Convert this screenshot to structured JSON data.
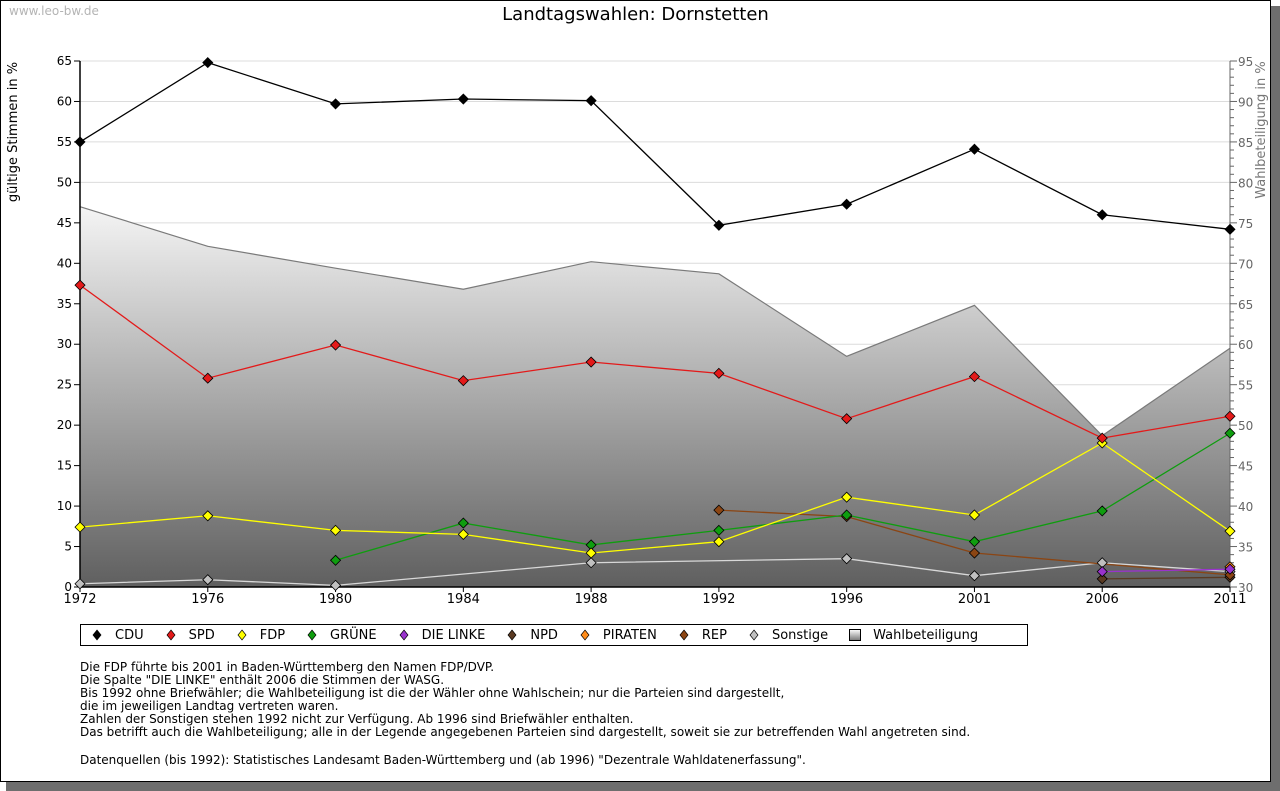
{
  "watermark": "www.leo-bw.de",
  "chart_data": {
    "type": "line",
    "title": "Landtagswahlen: Dornstetten",
    "ylabel": "gültige Stimmen in %",
    "y2label": "Wahlbeteiligung in %",
    "ylim": [
      0,
      65
    ],
    "y2lim": [
      30,
      95
    ],
    "yticks": [
      0,
      5,
      10,
      15,
      20,
      25,
      30,
      35,
      40,
      45,
      50,
      55,
      60,
      65
    ],
    "y2ticks": [
      30,
      35,
      40,
      45,
      50,
      55,
      60,
      65,
      70,
      75,
      80,
      85,
      90,
      95
    ],
    "grid": true,
    "categories": [
      "1972",
      "1976",
      "1980",
      "1984",
      "1988",
      "1992",
      "1996",
      "2001",
      "2006",
      "2011"
    ],
    "series": [
      {
        "name": "Wahlbeteiligung",
        "type": "area",
        "axis": "right",
        "color": "#808080",
        "values": [
          77.0,
          72.1,
          69.4,
          66.8,
          70.2,
          68.7,
          58.5,
          64.8,
          48.7,
          59.5
        ]
      },
      {
        "name": "CDU",
        "color": "#000000",
        "values": [
          55.0,
          64.8,
          59.7,
          60.3,
          60.1,
          44.7,
          47.3,
          54.1,
          46.0,
          44.2
        ]
      },
      {
        "name": "SPD",
        "color": "#e31a1a",
        "values": [
          37.3,
          25.8,
          29.9,
          25.5,
          27.8,
          26.4,
          20.8,
          26.0,
          18.4,
          21.1
        ]
      },
      {
        "name": "FDP",
        "color": "#ffff00",
        "values": [
          7.4,
          8.8,
          7.0,
          6.5,
          4.2,
          5.6,
          11.1,
          8.9,
          17.8,
          6.9
        ]
      },
      {
        "name": "GRÜNE",
        "color": "#0f9d0f",
        "values": [
          null,
          null,
          3.3,
          7.9,
          5.2,
          7.0,
          8.9,
          5.6,
          9.4,
          19.0
        ]
      },
      {
        "name": "DIE LINKE",
        "color": "#9933cc",
        "values": [
          null,
          null,
          null,
          null,
          null,
          null,
          null,
          null,
          1.9,
          2.2
        ]
      },
      {
        "name": "NPD",
        "color": "#5a3a22",
        "values": [
          null,
          null,
          null,
          null,
          null,
          null,
          null,
          null,
          1.0,
          1.2
        ]
      },
      {
        "name": "PIRATEN",
        "color": "#ff8c1a",
        "values": [
          null,
          null,
          null,
          null,
          null,
          null,
          null,
          null,
          null,
          2.5
        ]
      },
      {
        "name": "REP",
        "color": "#8b4513",
        "values": [
          null,
          null,
          null,
          null,
          null,
          9.5,
          8.7,
          4.2,
          null,
          1.5
        ]
      },
      {
        "name": "Sonstige",
        "color": "#c0c0c0",
        "values": [
          0.4,
          0.9,
          0.2,
          null,
          3.0,
          null,
          3.5,
          1.4,
          3.0,
          1.9
        ]
      }
    ],
    "legend": [
      "CDU",
      "SPD",
      "FDP",
      "GRÜNE",
      "DIE LINKE",
      "NPD",
      "PIRATEN",
      "REP",
      "Sonstige",
      "Wahlbeteiligung"
    ],
    "legend_position": "bottom"
  },
  "notes": [
    "Die FDP führte bis 2001 in Baden-Württemberg den Namen FDP/DVP.",
    "Die Spalte \"DIE LINKE\" enthält 2006 die Stimmen der WASG.",
    "Bis 1992 ohne Briefwähler; die Wahlbeteiligung ist die der Wähler ohne Wahlschein; nur die Parteien sind dargestellt,",
    "die im jeweiligen Landtag vertreten waren.",
    "Zahlen der Sonstigen stehen 1992 nicht zur Verfügung. Ab 1996 sind Briefwähler enthalten.",
    "Das betrifft auch die Wahlbeteiligung; alle in der Legende angegebenen Parteien sind dargestellt, soweit sie zur betreffenden Wahl angetreten sind."
  ],
  "source": "Datenquellen (bis 1992): Statistisches Landesamt Baden-Württemberg und (ab 1996) \"Dezentrale Wahldatenerfassung\"."
}
